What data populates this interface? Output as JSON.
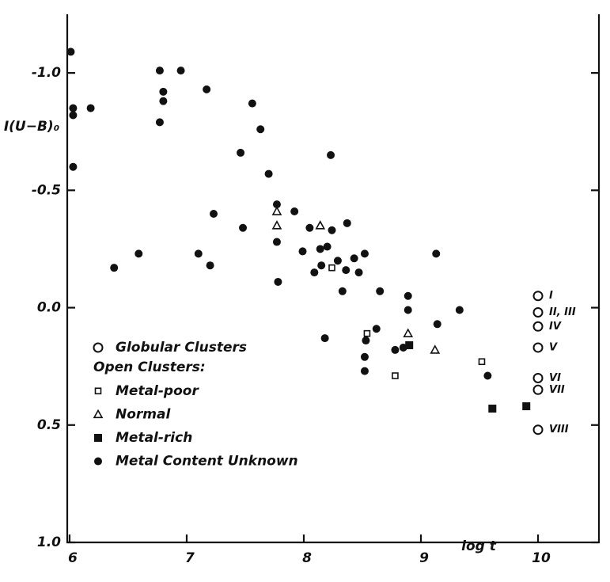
{
  "chart_data": {
    "type": "scatter",
    "x_label": "log t",
    "y_label": "I(U−B)₀",
    "xlim": [
      5.98,
      10.52
    ],
    "ylim": [
      -1.25,
      1.0
    ],
    "y_inverted": true,
    "xticks": [
      6,
      7,
      8,
      9,
      10
    ],
    "yticks": [
      {
        "value": -1.0,
        "label": "-1.0"
      },
      {
        "value": -0.5,
        "label": "-0.5"
      },
      {
        "value": 0.0,
        "label": "0.0"
      },
      {
        "value": 0.5,
        "label": "0.5"
      },
      {
        "value": 1.0,
        "label": "1.0"
      }
    ],
    "legend_group_label": "Open Clusters:",
    "series": [
      {
        "name": "Globular Clusters",
        "marker": "circle",
        "filled": false,
        "color": "#111111",
        "x": [
          10.0,
          10.0,
          10.0,
          10.0,
          10.0,
          10.0,
          10.0
        ],
        "y": [
          -0.05,
          0.02,
          0.08,
          0.17,
          0.3,
          0.35,
          0.52
        ],
        "point_labels": [
          "I",
          "II, III",
          "IV",
          "V",
          "VI",
          "VII",
          "VIII"
        ]
      },
      {
        "name": "Metal-poor",
        "marker": "square",
        "filled": false,
        "color": "#111111",
        "x": [
          8.54,
          8.78,
          8.24,
          9.52
        ],
        "y": [
          0.11,
          0.29,
          -0.17,
          0.23
        ]
      },
      {
        "name": "Normal",
        "marker": "triangle",
        "filled": false,
        "color": "#111111",
        "x": [
          7.77,
          7.77,
          8.14,
          8.89,
          9.12
        ],
        "y": [
          -0.41,
          -0.35,
          -0.35,
          0.11,
          0.18
        ]
      },
      {
        "name": "Metal-rich",
        "marker": "square",
        "filled": true,
        "color": "#111111",
        "x": [
          8.9,
          9.61,
          9.9
        ],
        "y": [
          0.16,
          0.43,
          0.42
        ]
      },
      {
        "name": "Metal Content Unknown",
        "marker": "circle",
        "filled": true,
        "color": "#111111",
        "x": [
          6.01,
          6.03,
          6.03,
          6.18,
          6.03,
          6.38,
          6.59,
          6.77,
          6.8,
          6.8,
          6.77,
          6.95,
          7.17,
          7.1,
          7.2,
          7.23,
          7.56,
          7.63,
          7.46,
          7.48,
          7.7,
          7.77,
          7.77,
          7.78,
          7.92,
          7.99,
          8.05,
          8.09,
          8.14,
          8.15,
          8.2,
          8.23,
          8.24,
          8.29,
          8.18,
          8.36,
          8.37,
          8.33,
          8.43,
          8.47,
          8.52,
          8.52,
          8.53,
          8.52,
          8.62,
          8.65,
          8.78,
          8.85,
          8.89,
          8.89,
          9.13,
          9.14,
          9.33,
          9.57
        ],
        "y": [
          -1.09,
          -0.85,
          -0.82,
          -0.85,
          -0.6,
          -0.17,
          -0.23,
          -1.01,
          -0.92,
          -0.88,
          -0.79,
          -1.01,
          -0.93,
          -0.23,
          -0.18,
          -0.4,
          -0.87,
          -0.76,
          -0.66,
          -0.34,
          -0.57,
          -0.44,
          -0.28,
          -0.11,
          -0.41,
          -0.24,
          -0.34,
          -0.15,
          -0.25,
          -0.18,
          -0.26,
          -0.65,
          -0.33,
          -0.2,
          0.13,
          -0.16,
          -0.36,
          -0.07,
          -0.21,
          -0.15,
          -0.23,
          0.21,
          0.14,
          0.27,
          0.09,
          -0.07,
          0.18,
          0.17,
          -0.05,
          0.01,
          -0.23,
          0.07,
          0.01,
          0.29
        ]
      }
    ]
  }
}
